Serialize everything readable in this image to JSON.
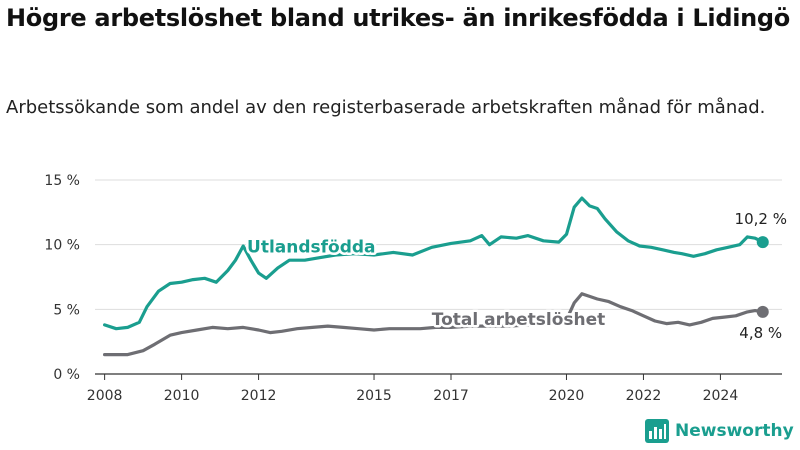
{
  "title": "Högre arbetslöshet bland utrikes- än inrikesfödda i Lidingö",
  "subtitle": "Arbetssökande som andel av den registerbaserade arbetskraften månad för månad.",
  "brand": {
    "name": "Newsworthy",
    "color": "#1a9e8f"
  },
  "chart_data": {
    "type": "line",
    "xlabel": "",
    "ylabel": "",
    "xlim": [
      2007.75,
      2025.6
    ],
    "ylim": [
      0,
      15
    ],
    "x_ticks": [
      2008,
      2010,
      2012,
      2015,
      2017,
      2020,
      2022,
      2024
    ],
    "y_ticks": [
      {
        "value": 0,
        "label": "0 %"
      },
      {
        "value": 5,
        "label": "5 %"
      },
      {
        "value": 10,
        "label": "10 %"
      },
      {
        "value": 15,
        "label": "15 %"
      }
    ],
    "grid": "horizontal",
    "series": [
      {
        "name": "Utlandsfödda",
        "color": "#1a9e8f",
        "end_label": "10,2 %",
        "points": [
          [
            2008.0,
            3.8
          ],
          [
            2008.3,
            3.5
          ],
          [
            2008.6,
            3.6
          ],
          [
            2008.9,
            4.0
          ],
          [
            2009.1,
            5.2
          ],
          [
            2009.4,
            6.4
          ],
          [
            2009.7,
            7.0
          ],
          [
            2010.0,
            7.1
          ],
          [
            2010.3,
            7.3
          ],
          [
            2010.6,
            7.4
          ],
          [
            2010.9,
            7.1
          ],
          [
            2011.2,
            8.0
          ],
          [
            2011.4,
            8.8
          ],
          [
            2011.6,
            9.9
          ],
          [
            2011.8,
            8.8
          ],
          [
            2012.0,
            7.8
          ],
          [
            2012.2,
            7.4
          ],
          [
            2012.5,
            8.2
          ],
          [
            2012.8,
            8.8
          ],
          [
            2013.2,
            8.8
          ],
          [
            2013.6,
            9.0
          ],
          [
            2014.0,
            9.2
          ],
          [
            2014.5,
            9.3
          ],
          [
            2015.0,
            9.2
          ],
          [
            2015.5,
            9.4
          ],
          [
            2016.0,
            9.2
          ],
          [
            2016.5,
            9.8
          ],
          [
            2017.0,
            10.1
          ],
          [
            2017.5,
            10.3
          ],
          [
            2017.8,
            10.7
          ],
          [
            2018.0,
            10.0
          ],
          [
            2018.3,
            10.6
          ],
          [
            2018.7,
            10.5
          ],
          [
            2019.0,
            10.7
          ],
          [
            2019.4,
            10.3
          ],
          [
            2019.8,
            10.2
          ],
          [
            2020.0,
            10.8
          ],
          [
            2020.2,
            12.9
          ],
          [
            2020.4,
            13.6
          ],
          [
            2020.6,
            13.0
          ],
          [
            2020.8,
            12.8
          ],
          [
            2021.0,
            12.0
          ],
          [
            2021.3,
            11.0
          ],
          [
            2021.6,
            10.3
          ],
          [
            2021.9,
            9.9
          ],
          [
            2022.2,
            9.8
          ],
          [
            2022.5,
            9.6
          ],
          [
            2022.8,
            9.4
          ],
          [
            2023.0,
            9.3
          ],
          [
            2023.3,
            9.1
          ],
          [
            2023.6,
            9.3
          ],
          [
            2023.9,
            9.6
          ],
          [
            2024.2,
            9.8
          ],
          [
            2024.5,
            10.0
          ],
          [
            2024.7,
            10.6
          ],
          [
            2024.9,
            10.5
          ],
          [
            2025.1,
            10.2
          ]
        ]
      },
      {
        "name": "Total arbetslöshet",
        "color": "#6e6e73",
        "end_label": "4,8 %",
        "points": [
          [
            2008.0,
            1.5
          ],
          [
            2008.3,
            1.5
          ],
          [
            2008.6,
            1.5
          ],
          [
            2009.0,
            1.8
          ],
          [
            2009.3,
            2.3
          ],
          [
            2009.7,
            3.0
          ],
          [
            2010.0,
            3.2
          ],
          [
            2010.4,
            3.4
          ],
          [
            2010.8,
            3.6
          ],
          [
            2011.2,
            3.5
          ],
          [
            2011.6,
            3.6
          ],
          [
            2012.0,
            3.4
          ],
          [
            2012.3,
            3.2
          ],
          [
            2012.6,
            3.3
          ],
          [
            2013.0,
            3.5
          ],
          [
            2013.4,
            3.6
          ],
          [
            2013.8,
            3.7
          ],
          [
            2014.2,
            3.6
          ],
          [
            2014.6,
            3.5
          ],
          [
            2015.0,
            3.4
          ],
          [
            2015.4,
            3.5
          ],
          [
            2015.8,
            3.5
          ],
          [
            2016.2,
            3.5
          ],
          [
            2016.6,
            3.6
          ],
          [
            2017.0,
            3.6
          ],
          [
            2017.5,
            3.7
          ],
          [
            2018.0,
            3.7
          ],
          [
            2018.5,
            3.7
          ],
          [
            2019.0,
            3.8
          ],
          [
            2019.5,
            3.8
          ],
          [
            2020.0,
            4.2
          ],
          [
            2020.2,
            5.5
          ],
          [
            2020.4,
            6.2
          ],
          [
            2020.6,
            6.0
          ],
          [
            2020.8,
            5.8
          ],
          [
            2021.1,
            5.6
          ],
          [
            2021.4,
            5.2
          ],
          [
            2021.7,
            4.9
          ],
          [
            2022.0,
            4.5
          ],
          [
            2022.3,
            4.1
          ],
          [
            2022.6,
            3.9
          ],
          [
            2022.9,
            4.0
          ],
          [
            2023.2,
            3.8
          ],
          [
            2023.5,
            4.0
          ],
          [
            2023.8,
            4.3
          ],
          [
            2024.1,
            4.4
          ],
          [
            2024.4,
            4.5
          ],
          [
            2024.7,
            4.8
          ],
          [
            2024.9,
            4.9
          ],
          [
            2025.1,
            4.8
          ]
        ]
      }
    ],
    "series_labels": [
      {
        "text": "Utlandsfödda",
        "series": 0,
        "x": 2011.7,
        "y": 9.4
      },
      {
        "text": "Total arbetslöshet",
        "series": 1,
        "x": 2016.5,
        "y": 3.8
      }
    ]
  }
}
